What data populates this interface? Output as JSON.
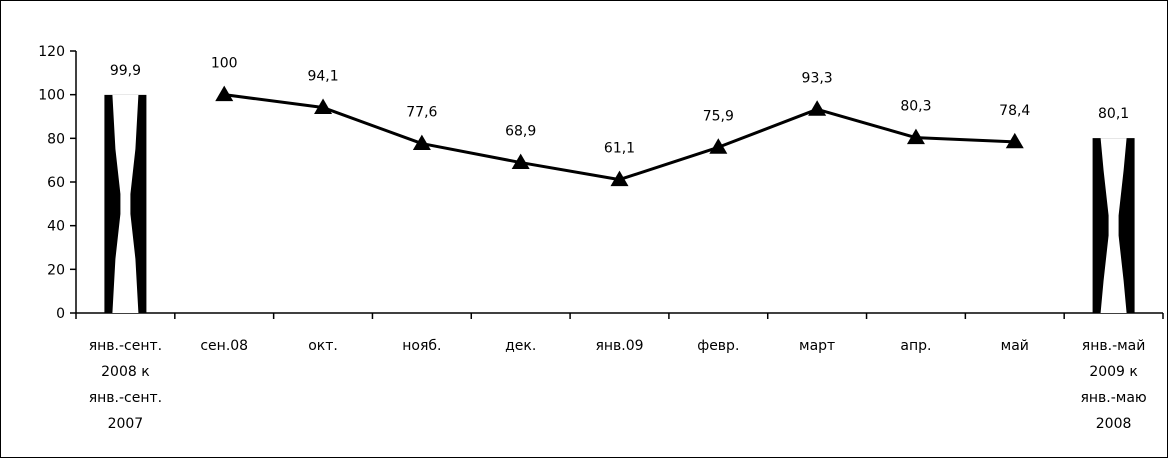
{
  "chart_data": {
    "type": "line",
    "categories": [
      [
        "янв.-сент.",
        "2008 к",
        "янв.-сент.",
        "2007"
      ],
      [
        "сен.08"
      ],
      [
        "окт."
      ],
      [
        "нояб."
      ],
      [
        "дек."
      ],
      [
        "янв.09"
      ],
      [
        "февр."
      ],
      [
        "март"
      ],
      [
        "апр."
      ],
      [
        "май"
      ],
      [
        "янв.-май",
        "2009 к",
        "янв.-маю",
        "2008"
      ]
    ],
    "yticks": [
      "0",
      "20",
      "40",
      "60",
      "80",
      "100",
      "120"
    ],
    "ylim": [
      0,
      120
    ],
    "grid": false,
    "series": [
      {
        "kind": "bar",
        "values": [
          99.9,
          null,
          null,
          null,
          null,
          null,
          null,
          null,
          null,
          null,
          80.1
        ],
        "labels": [
          "99,9",
          null,
          null,
          null,
          null,
          null,
          null,
          null,
          null,
          null,
          "80,1"
        ]
      },
      {
        "kind": "line",
        "marker": "triangle",
        "values": [
          null,
          100,
          94.1,
          77.6,
          68.9,
          61.1,
          75.9,
          93.3,
          80.3,
          78.4,
          null
        ],
        "labels": [
          null,
          "100",
          "94,1",
          "77,6",
          "68,9",
          "61,1",
          "75,9",
          "93,3",
          "80,3",
          "78,4",
          null
        ]
      }
    ],
    "colors": {
      "line": "#000000",
      "bar_edge": "#000000",
      "bar_fill": "#ffffff"
    }
  }
}
